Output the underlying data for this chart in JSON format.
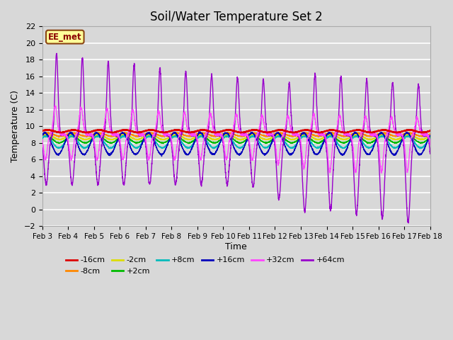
{
  "title": "Soil/Water Temperature Set 2",
  "xlabel": "Time",
  "ylabel": "Temperature (C)",
  "ylim": [
    -2,
    22
  ],
  "xlim": [
    0,
    15
  ],
  "bg_color": "#d8d8d8",
  "annotation_text": "EE_met",
  "annotation_bg": "#ffff99",
  "annotation_border": "#8b4513",
  "series_colors": {
    "-16cm": "#dd0000",
    "-8cm": "#ff8800",
    "-2cm": "#dddd00",
    "+2cm": "#00bb00",
    "+8cm": "#00bbbb",
    "+16cm": "#0000bb",
    "+32cm": "#ff44ff",
    "+64cm": "#9900cc"
  },
  "xtick_labels": [
    "Feb 3",
    "Feb 4",
    "Feb 5",
    "Feb 6",
    "Feb 7",
    "Feb 8",
    "Feb 9",
    "Feb 10",
    "Feb 11",
    "Feb 12",
    "Feb 13",
    "Feb 14",
    "Feb 15",
    "Feb 16",
    "Feb 17",
    "Feb 18"
  ],
  "grid_color": "#ffffff",
  "title_fontsize": 12
}
